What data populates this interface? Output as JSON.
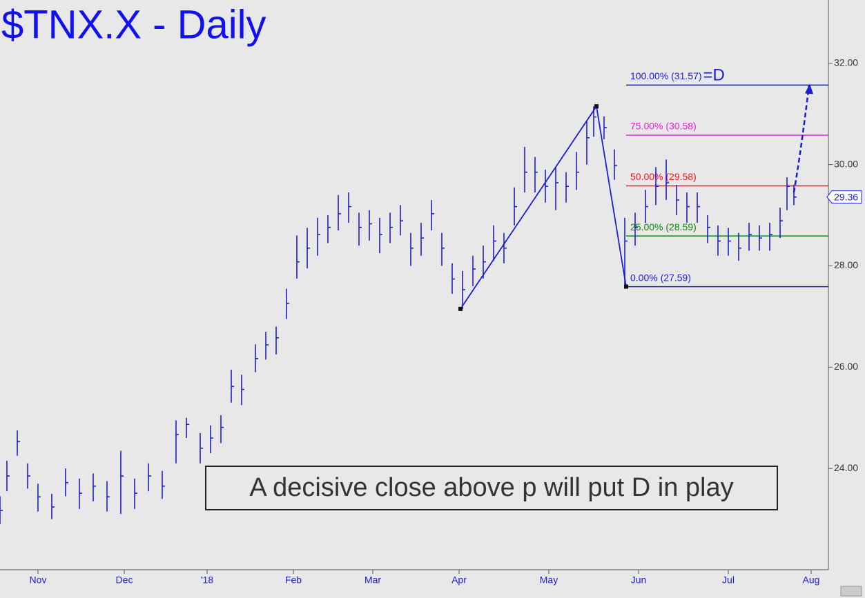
{
  "chart_data": {
    "type": "ohlc",
    "title": "$TNX.X - Daily",
    "color": "#1c1cd8",
    "x": [
      0,
      2,
      5,
      8,
      11,
      15,
      19,
      23,
      27,
      31,
      35,
      39,
      43,
      47,
      51,
      54,
      58,
      61,
      64,
      67,
      70,
      74,
      77,
      80,
      83,
      86,
      89,
      92,
      95,
      98,
      101,
      104,
      107,
      110,
      113,
      116,
      119,
      122,
      125,
      128,
      131,
      134,
      137,
      140,
      143,
      146,
      149,
      152,
      155,
      158,
      161,
      164,
      167,
      170,
      172,
      175,
      178,
      181,
      184,
      187,
      190,
      193,
      196,
      199,
      202,
      205,
      208,
      211,
      214,
      217,
      220,
      223,
      226,
      228,
      230
    ],
    "high": [
      23.45,
      24.15,
      24.75,
      24.1,
      23.7,
      23.5,
      24.0,
      23.8,
      23.9,
      23.75,
      24.35,
      23.8,
      24.1,
      23.95,
      24.95,
      25.0,
      24.7,
      24.85,
      25.05,
      25.95,
      25.85,
      26.45,
      26.7,
      26.8,
      27.55,
      28.6,
      28.75,
      28.95,
      29.0,
      29.4,
      29.45,
      29.05,
      29.1,
      28.95,
      29.05,
      29.2,
      28.65,
      28.85,
      29.3,
      28.65,
      28.05,
      27.9,
      28.2,
      28.4,
      28.8,
      28.65,
      29.55,
      30.35,
      30.15,
      29.9,
      29.95,
      29.85,
      30.25,
      30.85,
      31.15,
      30.95,
      30.3,
      28.95,
      29.05,
      29.5,
      29.95,
      30.1,
      29.6,
      29.45,
      29.45,
      29.0,
      28.8,
      28.75,
      28.65,
      28.85,
      28.8,
      28.85,
      29.15,
      29.75,
      29.6
    ],
    "low": [
      22.9,
      23.55,
      24.25,
      23.6,
      23.15,
      23.0,
      23.45,
      23.2,
      23.35,
      23.15,
      23.1,
      23.2,
      23.55,
      23.4,
      24.1,
      24.6,
      24.1,
      24.3,
      24.5,
      25.3,
      25.25,
      25.9,
      26.15,
      26.25,
      26.95,
      27.75,
      27.95,
      28.2,
      28.45,
      28.7,
      28.85,
      28.4,
      28.5,
      28.25,
      28.45,
      28.6,
      28.0,
      28.2,
      28.7,
      28.0,
      27.45,
      27.15,
      27.6,
      27.75,
      28.1,
      28.05,
      28.8,
      29.45,
      29.45,
      29.25,
      29.1,
      29.25,
      29.5,
      30.0,
      30.55,
      30.5,
      29.7,
      27.59,
      28.4,
      28.85,
      29.2,
      29.3,
      29.0,
      28.85,
      28.85,
      28.45,
      28.2,
      28.2,
      28.1,
      28.3,
      28.3,
      28.3,
      28.55,
      29.1,
      29.2
    ],
    "close": [
      23.17,
      23.85,
      24.53,
      23.85,
      23.44,
      23.24,
      23.72,
      23.51,
      23.65,
      23.44,
      23.85,
      23.51,
      23.85,
      23.65,
      24.67,
      24.87,
      24.4,
      24.6,
      24.81,
      25.62,
      25.56,
      26.17,
      26.44,
      26.58,
      27.26,
      28.08,
      28.35,
      28.62,
      28.76,
      29.03,
      29.17,
      28.76,
      28.83,
      28.62,
      28.76,
      28.89,
      28.35,
      28.55,
      29.03,
      28.35,
      27.74,
      27.53,
      27.94,
      28.08,
      28.49,
      28.35,
      29.17,
      29.85,
      29.85,
      29.57,
      29.64,
      29.57,
      29.85,
      30.53,
      30.94,
      30.73,
      29.98,
      28.49,
      28.76,
      29.17,
      29.57,
      29.64,
      29.3,
      29.17,
      29.17,
      28.76,
      28.49,
      28.49,
      28.35,
      28.62,
      28.55,
      28.62,
      28.89,
      29.57,
      29.36
    ],
    "xlim": [
      0,
      240
    ],
    "ylim": [
      22,
      33.25
    ],
    "xticks": [
      {
        "value": 11,
        "label": "Nov"
      },
      {
        "value": 36,
        "label": "Dec"
      },
      {
        "value": 60,
        "label": "'18"
      },
      {
        "value": 85,
        "label": "Feb"
      },
      {
        "value": 108,
        "label": "Mar"
      },
      {
        "value": 133,
        "label": "Apr"
      },
      {
        "value": 159,
        "label": "May"
      },
      {
        "value": 185,
        "label": "Jun"
      },
      {
        "value": 211,
        "label": "Jul"
      },
      {
        "value": 235,
        "label": "Aug"
      }
    ],
    "yticks": [
      {
        "value": 24,
        "label": "24.00"
      },
      {
        "value": 26,
        "label": "26.00"
      },
      {
        "value": 28,
        "label": "28.00"
      },
      {
        "value": 30,
        "label": "30.00"
      },
      {
        "value": 32,
        "label": "32.00"
      }
    ],
    "pattern": {
      "x": [
        133.4,
        172.8,
        181.4
      ],
      "y": [
        27.15,
        31.15,
        27.59
      ],
      "color": "#1c1cd8"
    },
    "projection": {
      "x": [
        230,
        234.4
      ],
      "y": [
        29.45,
        31.57
      ]
    },
    "levels": [
      {
        "value": 31.57,
        "label": "100.00% (31.57)",
        "color": "#1c1cd8"
      },
      {
        "value": 30.58,
        "label": "75.00% (30.58)",
        "color": "#e020e0"
      },
      {
        "value": 29.58,
        "label": "50.00% (29.58)",
        "color": "#ff1010"
      },
      {
        "value": 28.59,
        "label": "25.00% (28.59)",
        "color": "#0a8a0a"
      },
      {
        "value": 27.59,
        "label": "0.00% (27.59)",
        "color": "#1c1cd8"
      }
    ],
    "target_label": "=D",
    "last_price": 29.36,
    "annotation": "A decisive close above p will put D in play"
  }
}
